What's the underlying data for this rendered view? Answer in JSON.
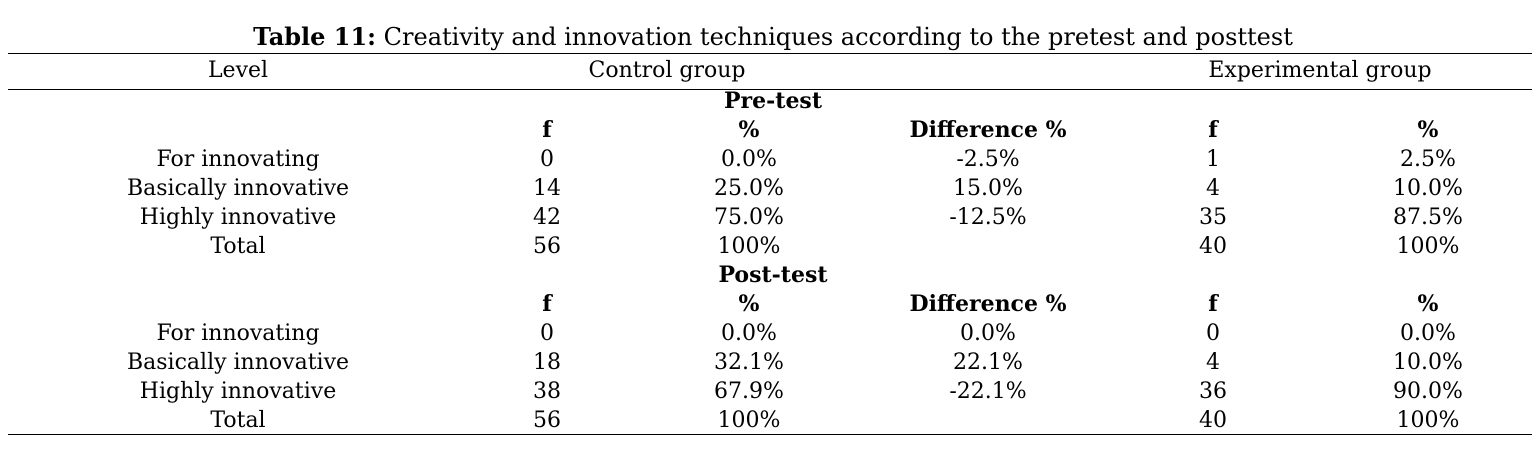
{
  "caption": {
    "label": "Table 11:",
    "text": "Creativity and innovation techniques according to the pretest and posttest"
  },
  "header": {
    "level": "Level",
    "control": "Control group",
    "experimental": "Experimental group"
  },
  "pretest": {
    "title": "Pre-test",
    "columns": [
      "f",
      "%",
      "Difference %",
      "f",
      "%"
    ],
    "rows": [
      {
        "level": "For innovating",
        "cf": "0",
        "cp": "0.0%",
        "diff": "-2.5%",
        "ef": "1",
        "ep": "2.5%"
      },
      {
        "level": "Basically innovative",
        "cf": "14",
        "cp": "25.0%",
        "diff": "15.0%",
        "ef": "4",
        "ep": "10.0%"
      },
      {
        "level": "Highly innovative",
        "cf": "42",
        "cp": "75.0%",
        "diff": "-12.5%",
        "ef": "35",
        "ep": "87.5%"
      },
      {
        "level": "Total",
        "cf": "56",
        "cp": "100%",
        "diff": "",
        "ef": "40",
        "ep": "100%"
      }
    ]
  },
  "posttest": {
    "title": "Post-test",
    "columns": [
      "f",
      "%",
      "Difference %",
      "f",
      "%"
    ],
    "rows": [
      {
        "level": "For innovating",
        "cf": "0",
        "cp": "0.0%",
        "diff": "0.0%",
        "ef": "0",
        "ep": "0.0%"
      },
      {
        "level": "Basically innovative",
        "cf": "18",
        "cp": "32.1%",
        "diff": "22.1%",
        "ef": "4",
        "ep": "10.0%"
      },
      {
        "level": "Highly innovative",
        "cf": "38",
        "cp": "67.9%",
        "diff": "-22.1%",
        "ef": "36",
        "ep": "90.0%"
      },
      {
        "level": "Total",
        "cf": "56",
        "cp": "100%",
        "diff": "",
        "ef": "40",
        "ep": "100%"
      }
    ]
  }
}
